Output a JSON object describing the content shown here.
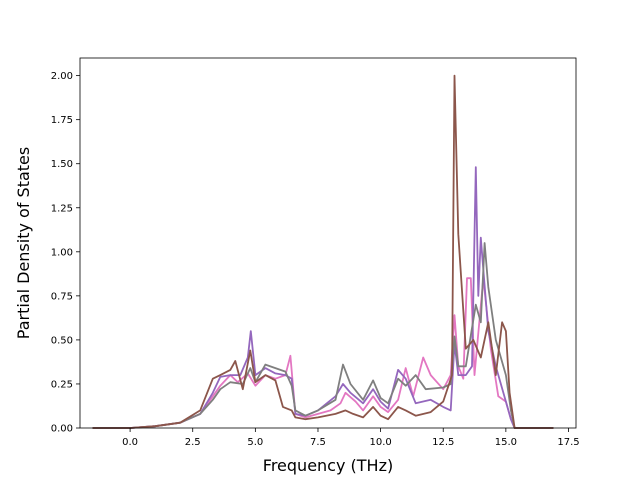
{
  "chart_data": {
    "type": "line",
    "title": "",
    "xlabel": "Frequency (THz)",
    "ylabel": "Partial Density of States",
    "xlim": [
      -2.0,
      17.8
    ],
    "ylim": [
      0.0,
      2.1
    ],
    "xticks": [
      0.0,
      2.5,
      5.0,
      7.5,
      10.0,
      12.5,
      15.0,
      17.5
    ],
    "xtick_labels": [
      "0.0",
      "2.5",
      "5.0",
      "7.5",
      "10.0",
      "12.5",
      "15.0",
      "17.5"
    ],
    "yticks": [
      0.0,
      0.25,
      0.5,
      0.75,
      1.0,
      1.25,
      1.5,
      1.75,
      2.0
    ],
    "ytick_labels": [
      "0.00",
      "0.25",
      "0.50",
      "0.75",
      "1.00",
      "1.25",
      "1.50",
      "1.75",
      "2.00"
    ],
    "grid": false,
    "legend": "none",
    "series": [
      {
        "color": "#e377c2",
        "points": [
          [
            -1.5,
            0
          ],
          [
            0,
            0
          ],
          [
            1,
            0.01
          ],
          [
            2,
            0.03
          ],
          [
            2.8,
            0.08
          ],
          [
            3.3,
            0.18
          ],
          [
            3.6,
            0.24
          ],
          [
            4,
            0.3
          ],
          [
            4.3,
            0.26
          ],
          [
            4.7,
            0.31
          ],
          [
            5,
            0.24
          ],
          [
            5.4,
            0.3
          ],
          [
            5.8,
            0.28
          ],
          [
            6.2,
            0.3
          ],
          [
            6.4,
            0.41
          ],
          [
            6.6,
            0.08
          ],
          [
            7,
            0.06
          ],
          [
            7.5,
            0.08
          ],
          [
            8,
            0.1
          ],
          [
            8.4,
            0.14
          ],
          [
            8.6,
            0.2
          ],
          [
            9,
            0.15
          ],
          [
            9.3,
            0.1
          ],
          [
            9.7,
            0.18
          ],
          [
            10,
            0.12
          ],
          [
            10.3,
            0.09
          ],
          [
            10.7,
            0.16
          ],
          [
            11,
            0.34
          ],
          [
            11.3,
            0.18
          ],
          [
            11.7,
            0.4
          ],
          [
            12,
            0.3
          ],
          [
            12.5,
            0.22
          ],
          [
            12.8,
            0.3
          ],
          [
            12.95,
            0.64
          ],
          [
            13.1,
            0.35
          ],
          [
            13.3,
            0.28
          ],
          [
            13.45,
            0.85
          ],
          [
            13.6,
            0.85
          ],
          [
            13.75,
            0.3
          ],
          [
            14.1,
            0.85
          ],
          [
            14.4,
            0.45
          ],
          [
            14.7,
            0.18
          ],
          [
            15,
            0.15
          ],
          [
            15.2,
            0.05
          ],
          [
            15.35,
            0.0
          ],
          [
            16.9,
            0.0
          ]
        ]
      },
      {
        "color": "#9467bd",
        "points": [
          [
            -1.5,
            0
          ],
          [
            0,
            0
          ],
          [
            1,
            0.01
          ],
          [
            2,
            0.03
          ],
          [
            2.8,
            0.08
          ],
          [
            3.3,
            0.2
          ],
          [
            3.6,
            0.29
          ],
          [
            4,
            0.3
          ],
          [
            4.4,
            0.3
          ],
          [
            4.7,
            0.4
          ],
          [
            4.82,
            0.55
          ],
          [
            5,
            0.3
          ],
          [
            5.4,
            0.34
          ],
          [
            5.8,
            0.31
          ],
          [
            6.2,
            0.3
          ],
          [
            6.45,
            0.28
          ],
          [
            6.6,
            0.08
          ],
          [
            7,
            0.07
          ],
          [
            7.5,
            0.1
          ],
          [
            8.2,
            0.18
          ],
          [
            8.5,
            0.25
          ],
          [
            8.8,
            0.2
          ],
          [
            9.3,
            0.14
          ],
          [
            9.7,
            0.22
          ],
          [
            10,
            0.15
          ],
          [
            10.3,
            0.11
          ],
          [
            10.7,
            0.33
          ],
          [
            11,
            0.28
          ],
          [
            11.4,
            0.14
          ],
          [
            12,
            0.16
          ],
          [
            12.5,
            0.12
          ],
          [
            12.8,
            0.1
          ],
          [
            12.95,
            0.48
          ],
          [
            13.1,
            0.3
          ],
          [
            13.4,
            0.3
          ],
          [
            13.65,
            0.35
          ],
          [
            13.8,
            1.48
          ],
          [
            13.9,
            0.75
          ],
          [
            14.0,
            1.08
          ],
          [
            14.1,
            0.9
          ],
          [
            14.3,
            0.55
          ],
          [
            14.6,
            0.35
          ],
          [
            15,
            0.15
          ],
          [
            15.2,
            0.05
          ],
          [
            15.35,
            0.0
          ],
          [
            16.9,
            0.0
          ]
        ]
      },
      {
        "color": "#7f7f7f",
        "points": [
          [
            -1.5,
            0
          ],
          [
            0,
            0
          ],
          [
            1,
            0.01
          ],
          [
            2,
            0.03
          ],
          [
            2.8,
            0.08
          ],
          [
            3.3,
            0.16
          ],
          [
            3.6,
            0.22
          ],
          [
            4,
            0.26
          ],
          [
            4.5,
            0.25
          ],
          [
            4.8,
            0.34
          ],
          [
            5,
            0.26
          ],
          [
            5.4,
            0.36
          ],
          [
            5.8,
            0.34
          ],
          [
            6.2,
            0.32
          ],
          [
            6.45,
            0.24
          ],
          [
            6.6,
            0.1
          ],
          [
            7,
            0.07
          ],
          [
            7.5,
            0.1
          ],
          [
            8.2,
            0.16
          ],
          [
            8.5,
            0.36
          ],
          [
            8.8,
            0.25
          ],
          [
            9.3,
            0.16
          ],
          [
            9.7,
            0.27
          ],
          [
            10,
            0.17
          ],
          [
            10.3,
            0.14
          ],
          [
            10.7,
            0.28
          ],
          [
            11,
            0.24
          ],
          [
            11.4,
            0.3
          ],
          [
            11.8,
            0.22
          ],
          [
            12.5,
            0.23
          ],
          [
            12.8,
            0.25
          ],
          [
            12.95,
            0.52
          ],
          [
            13.1,
            0.35
          ],
          [
            13.4,
            0.35
          ],
          [
            13.8,
            0.7
          ],
          [
            14.0,
            0.6
          ],
          [
            14.15,
            1.05
          ],
          [
            14.3,
            0.8
          ],
          [
            14.6,
            0.5
          ],
          [
            15,
            0.3
          ],
          [
            15.2,
            0.1
          ],
          [
            15.35,
            0.0
          ],
          [
            16.9,
            0.0
          ]
        ]
      },
      {
        "color": "#8c564b",
        "points": [
          [
            -1.5,
            0
          ],
          [
            0,
            0
          ],
          [
            1,
            0.01
          ],
          [
            2,
            0.03
          ],
          [
            2.8,
            0.1
          ],
          [
            3.3,
            0.28
          ],
          [
            3.6,
            0.3
          ],
          [
            4,
            0.33
          ],
          [
            4.2,
            0.38
          ],
          [
            4.5,
            0.22
          ],
          [
            4.8,
            0.44
          ],
          [
            5,
            0.26
          ],
          [
            5.4,
            0.3
          ],
          [
            5.8,
            0.27
          ],
          [
            6.1,
            0.12
          ],
          [
            6.45,
            0.1
          ],
          [
            6.6,
            0.06
          ],
          [
            7,
            0.05
          ],
          [
            7.5,
            0.06
          ],
          [
            8.2,
            0.08
          ],
          [
            8.6,
            0.1
          ],
          [
            8.9,
            0.08
          ],
          [
            9.3,
            0.06
          ],
          [
            9.7,
            0.12
          ],
          [
            10,
            0.07
          ],
          [
            10.3,
            0.05
          ],
          [
            10.7,
            0.12
          ],
          [
            11,
            0.1
          ],
          [
            11.4,
            0.07
          ],
          [
            12,
            0.09
          ],
          [
            12.5,
            0.15
          ],
          [
            12.85,
            0.3
          ],
          [
            12.95,
            2.0
          ],
          [
            13.1,
            1.1
          ],
          [
            13.4,
            0.45
          ],
          [
            13.7,
            0.5
          ],
          [
            14.0,
            0.4
          ],
          [
            14.3,
            0.6
          ],
          [
            14.6,
            0.3
          ],
          [
            14.85,
            0.6
          ],
          [
            15.0,
            0.55
          ],
          [
            15.15,
            0.2
          ],
          [
            15.35,
            0.0
          ],
          [
            16.9,
            0.0
          ]
        ]
      }
    ]
  }
}
